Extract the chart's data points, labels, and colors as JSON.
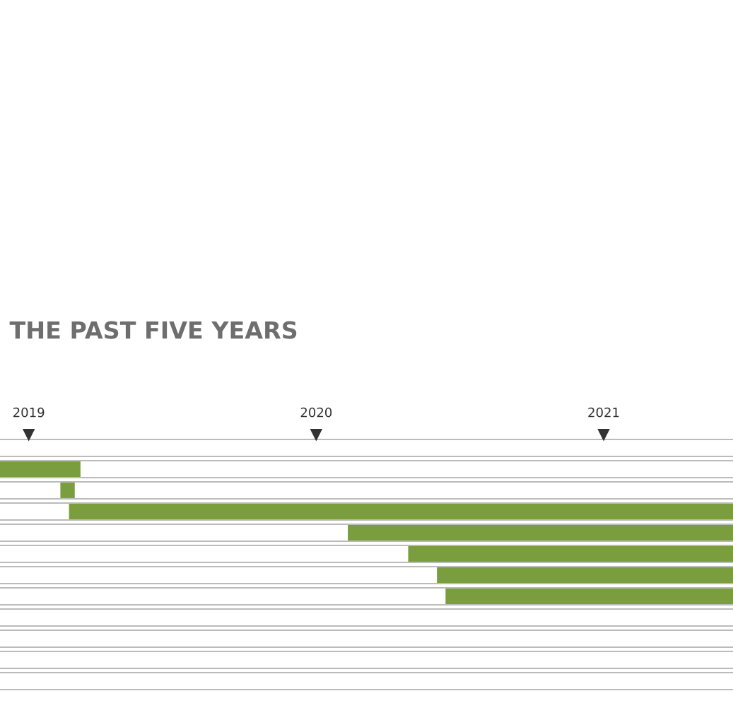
{
  "chart_data": {
    "type": "bar",
    "orientation": "horizontal",
    "title": "THE PAST FIVE YEARS",
    "categories": [
      null,
      null,
      null,
      null,
      null,
      null,
      null
    ],
    "series": [
      {
        "color": "#7a9e3e",
        "values": [
          0.28,
          0.05,
          2.31,
          1.34,
          1.13,
          1.03,
          1.0
        ],
        "base": [
          2018.9,
          2019.11,
          2019.14,
          2020.11,
          2020.32,
          2020.42,
          2020.45
        ]
      }
    ],
    "xlim": [
      2018.9,
      2021.45
    ],
    "xticks": [
      2019,
      2020,
      2021
    ],
    "grid": "y"
  }
}
